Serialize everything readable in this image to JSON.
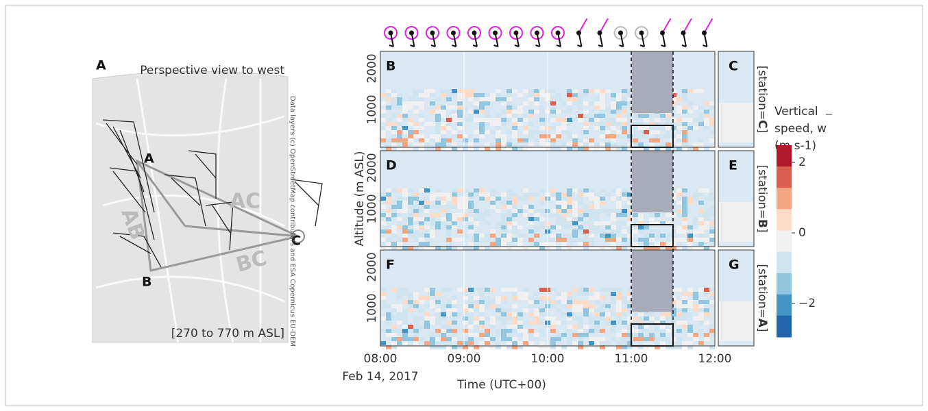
{
  "panel_a": {
    "label": "A",
    "title": "Perspective view to west",
    "stations": [
      "A",
      "B",
      "C"
    ],
    "map_labels": [
      "AC",
      "AB",
      "BC"
    ],
    "caption": "[270 to 770 m ASL]",
    "credit": "Data layers (c) OpenStreetMap contributors and ESA Copernicus EU-DEM"
  },
  "heatmaps": {
    "panels": [
      {
        "label": "B",
        "side": "C",
        "strip": {
          "prefix": "[station=",
          "station": "C",
          "suffix": "]"
        }
      },
      {
        "label": "D",
        "side": "E",
        "strip": {
          "prefix": "[station=",
          "station": "B",
          "suffix": "]"
        }
      },
      {
        "label": "F",
        "side": "G",
        "strip": {
          "prefix": "[station=",
          "station": "A",
          "suffix": "]"
        }
      }
    ],
    "y_ticks": [
      "1000",
      "2000"
    ],
    "x_ticks": [
      "08:00",
      "09:00",
      "10:00",
      "11:00",
      "12:00"
    ],
    "date": "Feb 14, 2017",
    "x_label": "Time (UTC+00)",
    "y_label": "Altitude (m ASL)"
  },
  "colorbar": {
    "title": [
      "Vertical",
      "speed, w",
      "(m s-1)"
    ],
    "ticks": [
      "2",
      "0",
      "−2"
    ]
  }
}
